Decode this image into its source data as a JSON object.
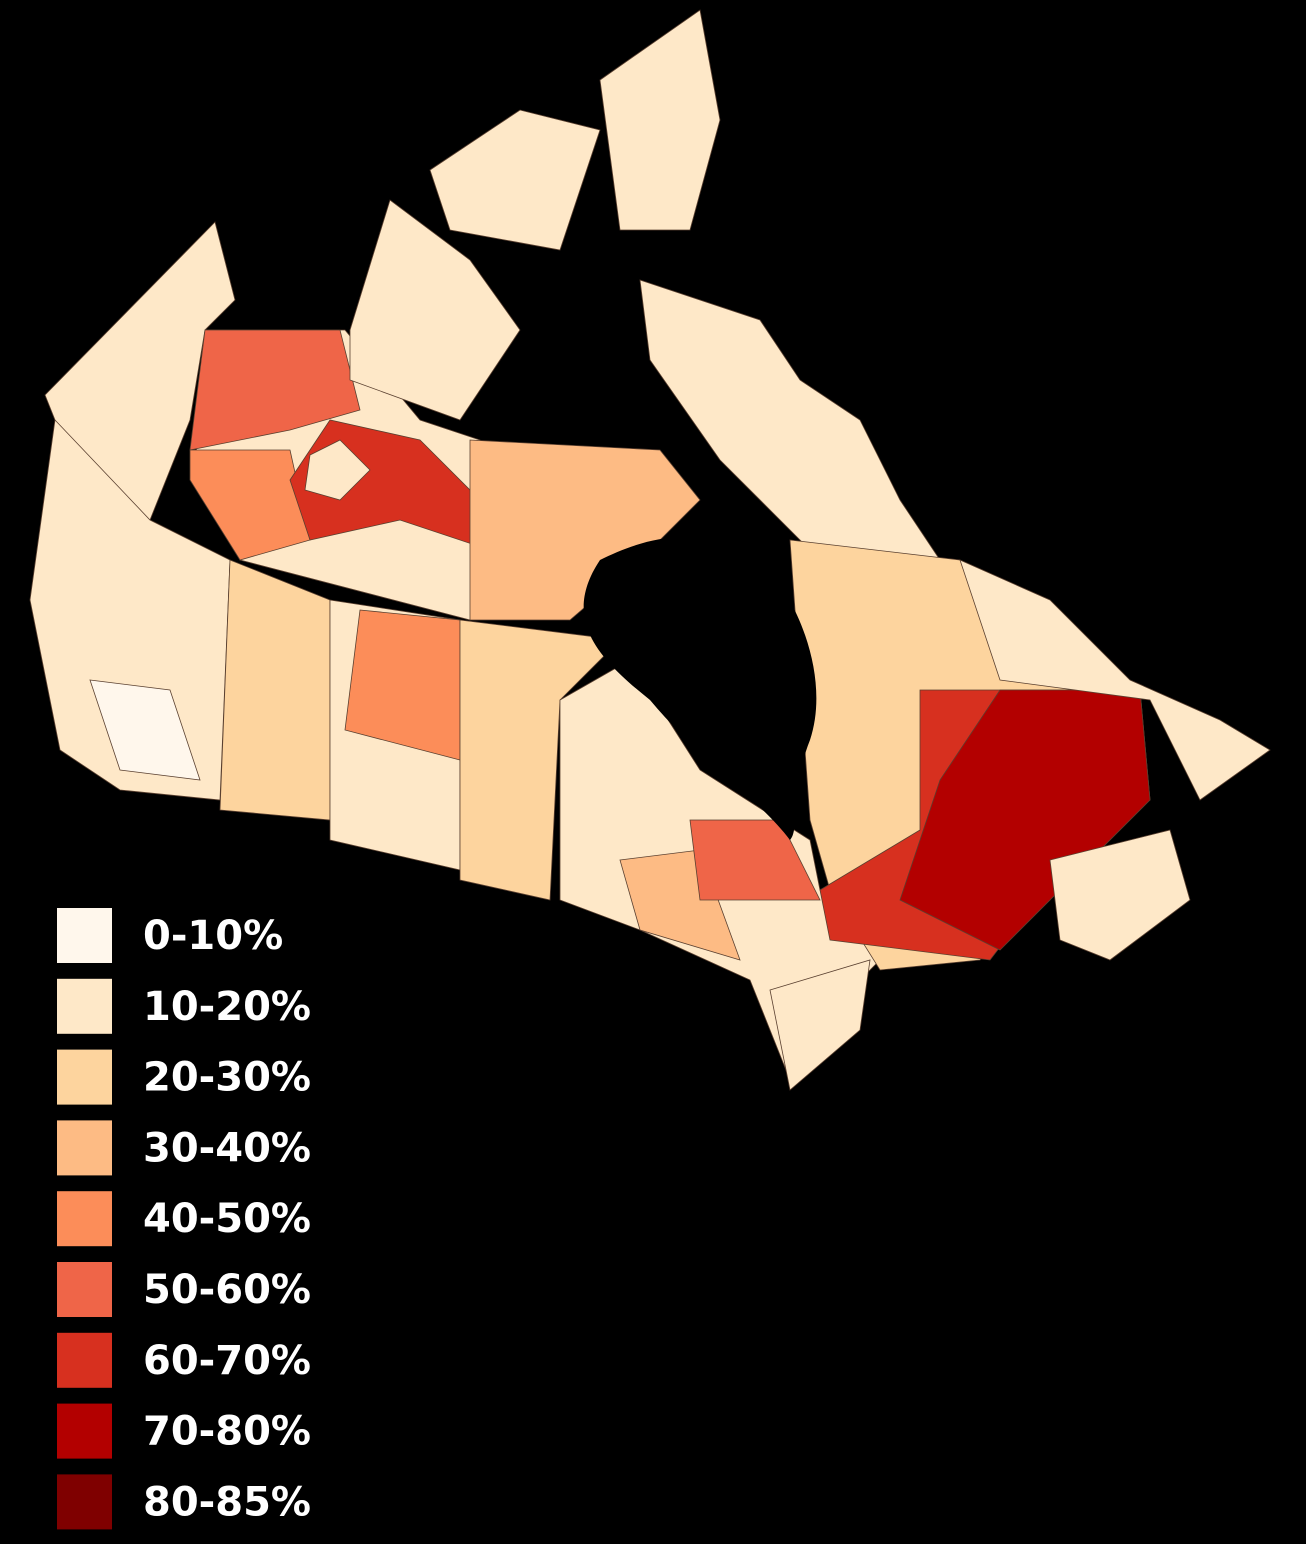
{
  "legend": {
    "items": [
      {
        "label": "0-10%",
        "color": "#fff7ec"
      },
      {
        "label": "10-20%",
        "color": "#fee8c8"
      },
      {
        "label": "20-30%",
        "color": "#fdd49e"
      },
      {
        "label": "30-40%",
        "color": "#fdbb84"
      },
      {
        "label": "40-50%",
        "color": "#fc8d59"
      },
      {
        "label": "50-60%",
        "color": "#ef6548"
      },
      {
        "label": "60-70%",
        "color": "#d7301f"
      },
      {
        "label": "70-80%",
        "color": "#b30000"
      },
      {
        "label": "80-85%",
        "color": "#7f0000"
      }
    ]
  }
}
